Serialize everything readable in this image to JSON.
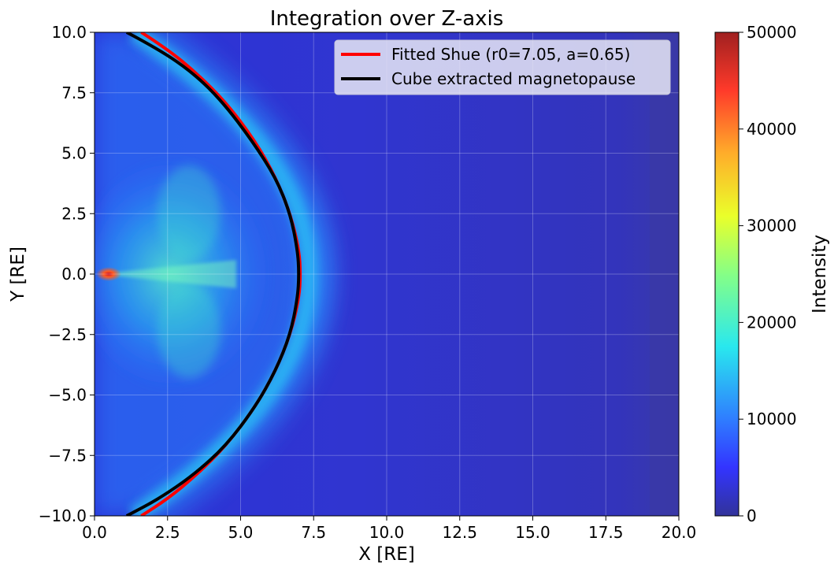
{
  "chart_data": {
    "type": "heatmap",
    "title": "Integration over Z-axis",
    "xlabel": "X [RE]",
    "ylabel": "Y [RE]",
    "xlim": [
      0,
      20
    ],
    "ylim": [
      -10,
      10
    ],
    "xticks": [
      0.0,
      2.5,
      5.0,
      7.5,
      10.0,
      12.5,
      15.0,
      17.5,
      20.0
    ],
    "xtick_labels": [
      "0.0",
      "2.5",
      "5.0",
      "7.5",
      "10.0",
      "12.5",
      "15.0",
      "17.5",
      "20.0"
    ],
    "yticks": [
      10.0,
      7.5,
      5.0,
      2.5,
      0.0,
      -2.5,
      -5.0,
      -7.5,
      -10.0
    ],
    "ytick_labels": [
      "10.0",
      "7.5",
      "5.0",
      "2.5",
      "0.0",
      "−2.5",
      "−5.0",
      "−7.5",
      "−10.0"
    ],
    "grid": true,
    "legend_position": "top-right",
    "colormap": "jet",
    "colorbar": {
      "label": "Intensity",
      "range": [
        0,
        50000
      ],
      "ticks": [
        0,
        10000,
        20000,
        30000,
        40000,
        50000
      ],
      "tick_labels": [
        "0",
        "10000",
        "20000",
        "30000",
        "40000",
        "50000"
      ]
    },
    "series": [
      {
        "name": "Fitted Shue (r0=7.05, a=0.65)",
        "color": "#ff0000",
        "r0": 7.05,
        "alpha": 0.65,
        "x": [
          1.6,
          2.5,
          3.5,
          4.5,
          5.5,
          6.2,
          6.7,
          7.0,
          7.05,
          7.0,
          6.7,
          6.2,
          5.5,
          4.5,
          3.5,
          2.5,
          1.6
        ],
        "y": [
          10.0,
          9.3,
          8.3,
          7.1,
          5.5,
          4.0,
          2.5,
          1.0,
          0.0,
          -1.0,
          -2.5,
          -4.0,
          -5.5,
          -7.1,
          -8.3,
          -9.3,
          -10.0
        ]
      },
      {
        "name": "Cube extracted magnetopause",
        "color": "#000000",
        "x": [
          1.1,
          2.2,
          3.4,
          4.4,
          5.4,
          6.2,
          6.7,
          6.95,
          7.0,
          6.95,
          6.7,
          6.2,
          5.5,
          4.5,
          3.4,
          2.2,
          1.1
        ],
        "y": [
          10.0,
          9.3,
          8.3,
          7.1,
          5.5,
          4.0,
          2.5,
          1.0,
          0.0,
          -1.0,
          -2.5,
          -4.0,
          -5.5,
          -7.1,
          -8.3,
          -9.3,
          -10.0
        ]
      }
    ],
    "colors": {
      "background_field": "#2f35c8",
      "dayside_field": "#3434b0"
    }
  }
}
